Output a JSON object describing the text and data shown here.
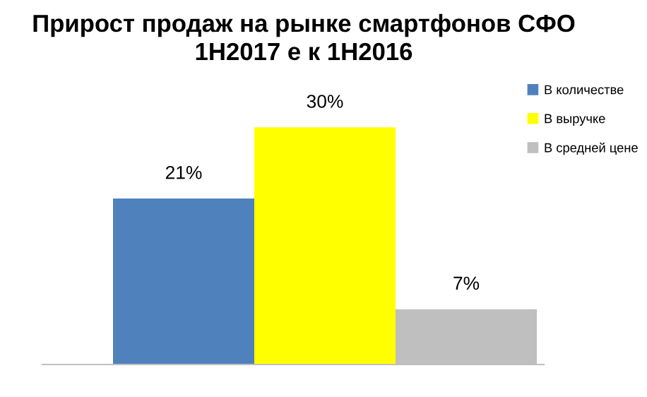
{
  "chart_data": {
    "type": "bar",
    "title": "Прирост продаж на рынке смартфонов СФО\n1H2017 е к 1H2016",
    "categories": [
      null
    ],
    "series": [
      {
        "name": "В количестве",
        "color": "#4f81bd",
        "values": [
          21
        ],
        "value_labels": [
          "21%"
        ]
      },
      {
        "name": "В выручке",
        "color": "#ffff00",
        "values": [
          30
        ],
        "value_labels": [
          "30%"
        ]
      },
      {
        "name": "В средней цене",
        "color": "#bfbfbf",
        "values": [
          7
        ],
        "value_labels": [
          "7%"
        ]
      }
    ],
    "legend": "right",
    "grid": false
  }
}
